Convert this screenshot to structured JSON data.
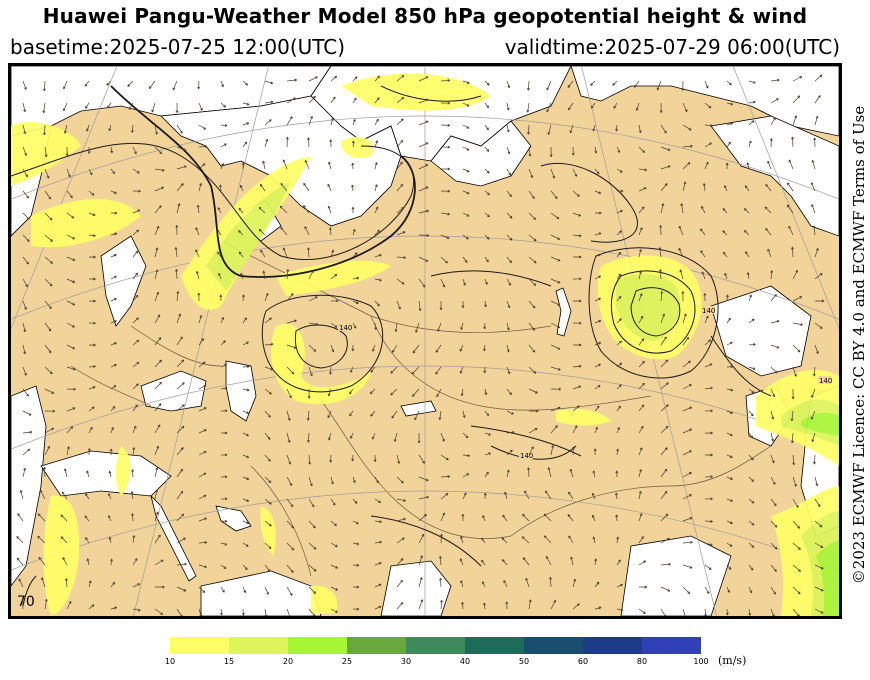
{
  "header": {
    "title": "Huawei Pangu-Weather Model 850 hPa geopotential height & wind",
    "basetime": "basetime:2025-07-25 12:00(UTC)",
    "validtime": "validtime:2025-07-29 06:00(UTC)"
  },
  "license": "©2023 ECMWF Licence: CC BY 4.0 and ECMWF Terms of Use",
  "map": {
    "land_color": "#f2d39a",
    "water_color": "#ffffff",
    "contour_labels": [
      "140",
      "140",
      "140",
      "140"
    ],
    "corner_label": "70"
  },
  "colorbar": {
    "unit": "(m/s)",
    "ticks": [
      "10",
      "15",
      "20",
      "25",
      "30",
      "40",
      "50",
      "60",
      "80",
      "100"
    ],
    "colors": [
      "#ffff66",
      "#ddf55a",
      "#a8f535",
      "#6aa83e",
      "#3f8a5c",
      "#1f6b5a",
      "#1b4d6e",
      "#1d3b86",
      "#3040b8"
    ]
  }
}
